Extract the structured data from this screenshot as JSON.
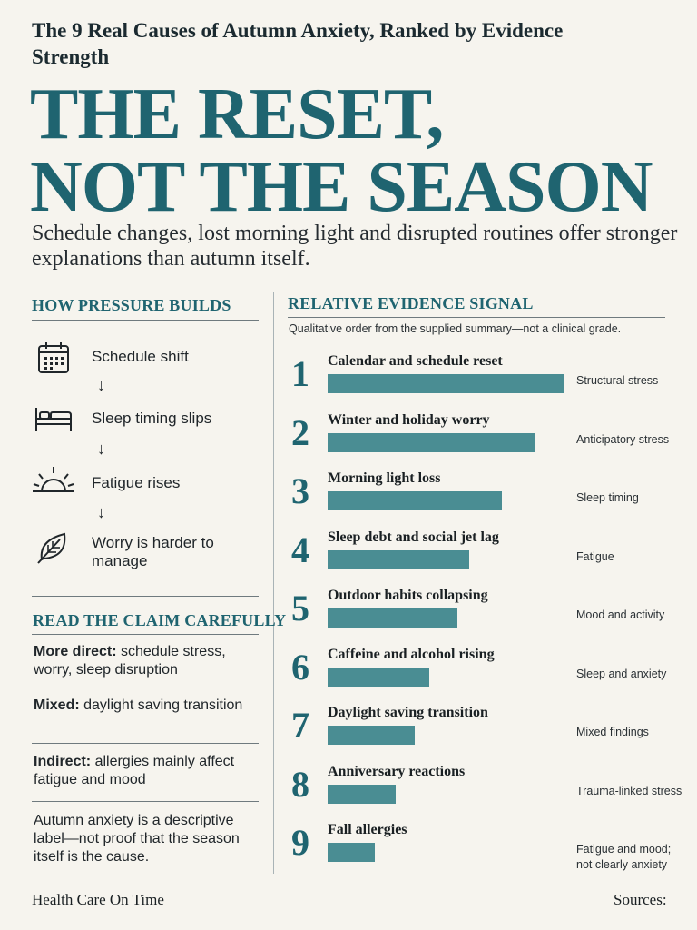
{
  "header": {
    "kicker": "The 9 Real Causes of Autumn Anxiety, Ranked by Evidence Strength",
    "headline_line1": "THE RESET,",
    "headline_line2": "NOT THE SEASON",
    "deck": "Schedule changes, lost morning light and disrupted routines offer stronger explanations than autumn itself."
  },
  "pressure": {
    "title": "HOW PRESSURE BUILDS",
    "arrow": "↓",
    "steps": [
      {
        "label": "Schedule shift",
        "icon": "calendar-icon"
      },
      {
        "label": "Sleep timing slips",
        "icon": "bed-icon"
      },
      {
        "label": "Fatigue rises",
        "icon": "sunrise-icon"
      },
      {
        "label": "Worry is harder to manage",
        "icon": "leaf-icon"
      }
    ]
  },
  "claims": {
    "title": "READ THE CLAIM CAREFULLY",
    "items": [
      {
        "lead": "More direct:",
        "text": " schedule stress, worry, sleep disruption"
      },
      {
        "lead": "Mixed:",
        "text": " daylight saving transition"
      },
      {
        "lead": "Indirect:",
        "text": " allergies mainly affect fatigue and mood"
      }
    ],
    "note": "Autumn anxiety is a descriptive label—not proof that the season itself is the cause."
  },
  "evidence": {
    "title": "RELATIVE EVIDENCE SIGNAL",
    "subtitle": "Qualitative order from the supplied summary—not a clinical grade."
  },
  "chart_data": {
    "type": "bar",
    "title": "RELATIVE EVIDENCE SIGNAL",
    "subtitle": "Qualitative order from the supplied summary—not a clinical grade.",
    "orientation": "horizontal",
    "categories": [
      "Calendar and schedule reset",
      "Winter and holiday worry",
      "Morning light loss",
      "Sleep debt and social jet lag",
      "Outdoor habits collapsing",
      "Caffeine and alcohol rising",
      "Daylight saving transition",
      "Anniversary reactions",
      "Fall allergies"
    ],
    "ranks": [
      "1",
      "2",
      "3",
      "4",
      "5",
      "6",
      "7",
      "8",
      "9"
    ],
    "values": [
      100,
      88,
      74,
      60,
      55,
      43,
      37,
      29,
      20
    ],
    "notes": [
      "Structural stress",
      "Anticipatory stress",
      "Sleep timing",
      "Fatigue",
      "Mood and activity",
      "Sleep and anxiety",
      "Mixed findings",
      "Trauma-linked stress",
      "Fatigue and mood; not clearly anxiety"
    ],
    "bar_color": "#4a8d93"
  },
  "footer": {
    "brand": "Health Care On Time",
    "sources": "Sources:"
  }
}
